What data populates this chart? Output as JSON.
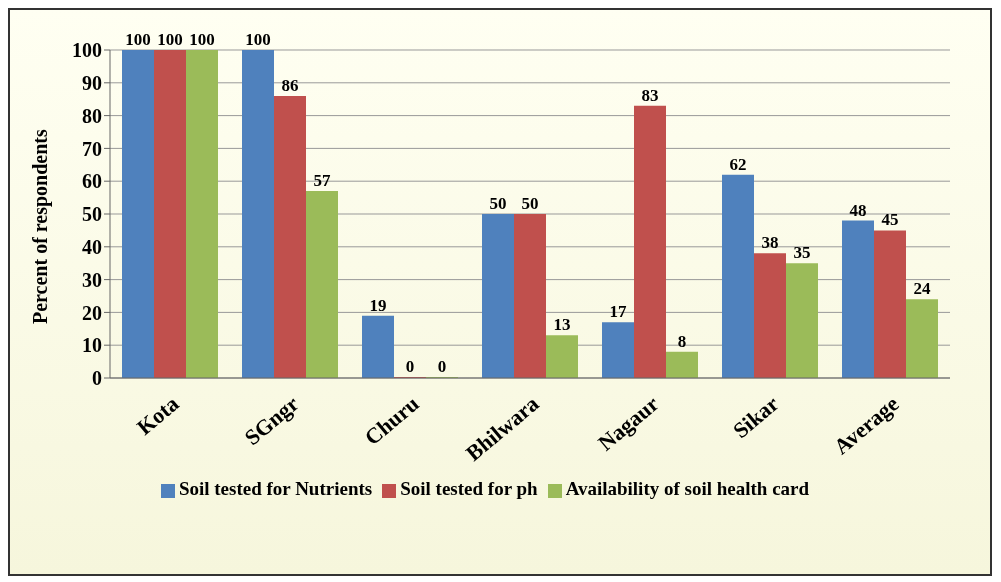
{
  "chart_data": {
    "type": "bar",
    "ylabel": "Percent of respondents",
    "categories": [
      "Kota",
      "SGngr",
      "Churu",
      "Bhilwara",
      "Nagaur",
      "Sikar",
      "Average"
    ],
    "series": [
      {
        "name": "Soil tested for Nutrients",
        "color": "#4f81bd",
        "values": [
          100,
          100,
          19,
          50,
          17,
          62,
          48
        ]
      },
      {
        "name": "Soil tested for ph",
        "color": "#c0504d",
        "values": [
          100,
          86,
          0,
          50,
          83,
          38,
          45
        ]
      },
      {
        "name": "Availability of soil health card",
        "color": "#9bbb59",
        "values": [
          100,
          57,
          0,
          13,
          8,
          35,
          24
        ]
      }
    ],
    "ylim": [
      0,
      100
    ],
    "yticks": [
      0,
      10,
      20,
      30,
      40,
      50,
      60,
      70,
      80,
      90,
      100
    ],
    "grid": "y",
    "legend": "bottom",
    "data_labels": true
  }
}
